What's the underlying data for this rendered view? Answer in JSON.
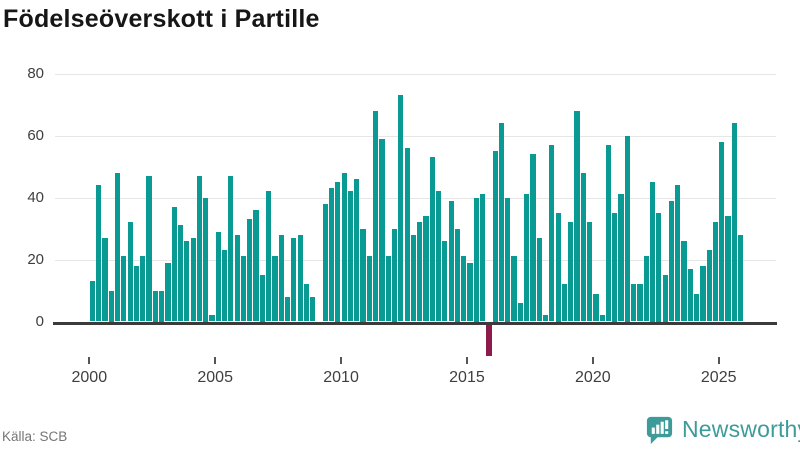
{
  "title": "Födelseöverskott i Partille",
  "source": "Källa: SCB",
  "brand": {
    "name": "Newsworthy"
  },
  "colors": {
    "bar": "#0a9a94",
    "negative_bar": "#8c1a4b",
    "gridline": "#e6e6e6",
    "axis_line": "#3b3b3b",
    "title_text": "#161616",
    "tick_text": "#3f3f3f",
    "source_text": "#757575",
    "brand_teal": "#3d9b99"
  },
  "chart_data": {
    "type": "bar",
    "title": "Födelseöverskott i Partille",
    "frequency": "quarterly",
    "start": "2000 Q1",
    "end": "2025 Q4",
    "values": [
      13,
      44,
      27,
      10,
      48,
      21,
      32,
      18,
      21,
      47,
      10,
      10,
      19,
      37,
      31,
      26,
      27,
      47,
      40,
      2,
      29,
      23,
      47,
      28,
      21,
      33,
      36,
      15,
      42,
      21,
      28,
      8,
      27,
      28,
      12,
      8,
      0,
      38,
      43,
      45,
      48,
      42,
      46,
      30,
      21,
      68,
      59,
      21,
      30,
      73,
      56,
      28,
      32,
      34,
      53,
      42,
      26,
      39,
      30,
      21,
      19,
      40,
      41,
      -10,
      55,
      64,
      40,
      21,
      6,
      41,
      54,
      27,
      2,
      57,
      35,
      12,
      32,
      68,
      48,
      32,
      9,
      2,
      57,
      35,
      41,
      60,
      12,
      12,
      21,
      45,
      35,
      15,
      39,
      44,
      26,
      17,
      9,
      18,
      23,
      32,
      58,
      34,
      64,
      28
    ],
    "x_tick_labels": [
      "2000",
      "2005",
      "2010",
      "2015",
      "2020",
      "2025"
    ],
    "y_ticks": [
      0,
      20,
      40,
      60,
      80
    ],
    "ylim": [
      -15,
      80
    ],
    "xlabel": "",
    "ylabel": "",
    "grid": "horizontal",
    "legend": "none",
    "note": "negative values drawn in dark red"
  }
}
